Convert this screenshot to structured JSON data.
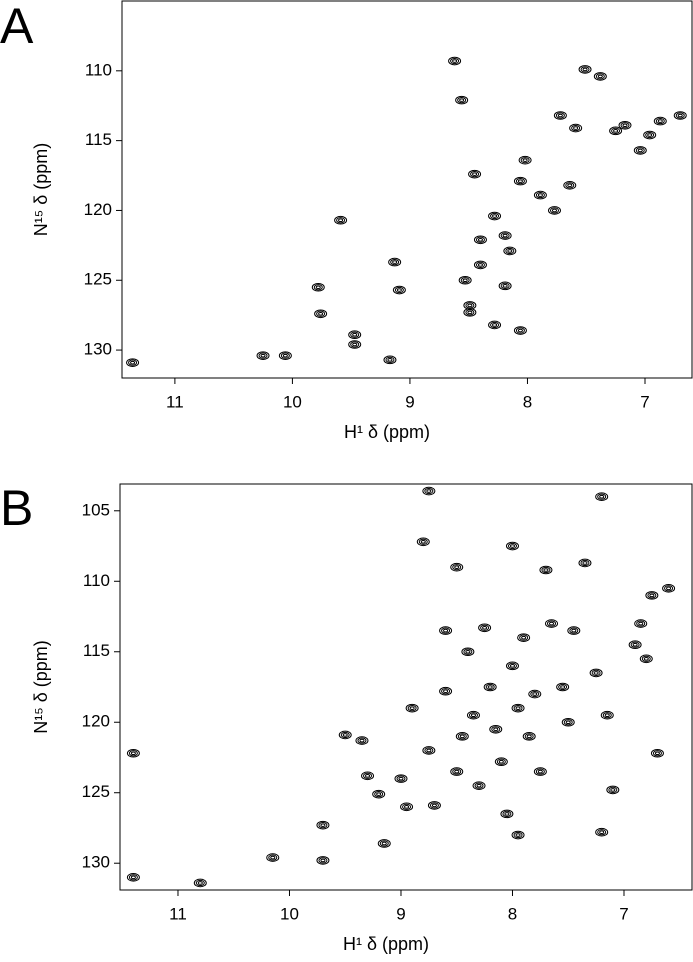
{
  "chart_data": [
    {
      "type": "contour",
      "panel_label": "A",
      "x_label": "H¹  δ (ppm)",
      "y_label": "N¹⁵  δ (ppm)",
      "xlim": [
        11.45,
        6.6
      ],
      "ylim": [
        105,
        132
      ],
      "xticks": [
        11,
        10,
        9,
        8,
        7
      ],
      "yticks": [
        110,
        115,
        120,
        125,
        130
      ],
      "color": "#000000",
      "x": [
        11.36,
        10.25,
        10.06,
        9.59,
        9.13,
        9.09,
        9.17,
        8.62,
        8.56,
        8.45,
        8.4,
        8.53,
        8.49,
        8.49,
        8.4,
        8.28,
        8.19,
        8.15,
        8.06,
        8.02,
        7.89,
        7.77,
        7.64,
        7.72,
        7.59,
        7.51,
        7.38,
        7.25,
        7.17,
        7.04,
        6.96,
        6.87,
        6.7,
        9.47,
        9.47,
        9.78,
        9.76,
        8.19,
        8.06,
        8.28
      ],
      "y": [
        130.9,
        130.4,
        130.4,
        120.7,
        123.7,
        125.7,
        130.7,
        109.3,
        112.1,
        117.4,
        122.1,
        125.0,
        126.8,
        127.3,
        123.9,
        120.4,
        121.8,
        122.9,
        117.9,
        116.4,
        118.9,
        120.0,
        118.2,
        113.2,
        114.1,
        109.9,
        110.4,
        114.3,
        113.9,
        115.7,
        114.6,
        113.6,
        113.2,
        128.9,
        129.6,
        125.5,
        127.4,
        125.4,
        128.6,
        128.2
      ]
    },
    {
      "type": "contour",
      "panel_label": "B",
      "x_label": "H¹  δ (ppm)",
      "y_label": "N¹⁵  δ (ppm)",
      "xlim": [
        11.52,
        6.39
      ],
      "ylim": [
        103.1,
        131.9
      ],
      "xticks": [
        11,
        10,
        9,
        8,
        7
      ],
      "yticks": [
        105,
        110,
        115,
        120,
        125,
        130
      ],
      "color": "#000000",
      "x": [
        11.4,
        11.4,
        10.8,
        10.15,
        9.7,
        9.7,
        9.5,
        9.35,
        9.3,
        9.2,
        9.15,
        9.0,
        8.95,
        8.9,
        8.75,
        8.8,
        8.75,
        8.7,
        8.6,
        8.6,
        8.5,
        8.5,
        8.45,
        8.4,
        8.35,
        8.3,
        8.25,
        8.2,
        8.15,
        8.1,
        8.05,
        8.0,
        8.0,
        7.95,
        7.95,
        7.9,
        7.85,
        7.8,
        7.75,
        7.7,
        7.65,
        7.55,
        7.5,
        7.45,
        7.35,
        7.2,
        7.25,
        7.15,
        7.1,
        7.2,
        6.9,
        6.85,
        6.8,
        6.7,
        6.75,
        6.6
      ],
      "y": [
        122.2,
        131.0,
        131.4,
        129.6,
        127.3,
        129.8,
        120.9,
        121.3,
        123.8,
        125.1,
        128.6,
        124.0,
        126.0,
        119.0,
        103.6,
        107.2,
        122.0,
        125.9,
        113.5,
        117.8,
        109.0,
        123.5,
        121.0,
        115.0,
        119.5,
        124.5,
        113.3,
        117.5,
        120.5,
        122.8,
        126.5,
        107.5,
        116.0,
        119.0,
        128.0,
        114.0,
        121.0,
        118.0,
        123.5,
        109.2,
        113.0,
        117.5,
        120.0,
        113.5,
        108.7,
        104.0,
        116.5,
        119.5,
        124.8,
        127.8,
        114.5,
        113.0,
        115.5,
        122.2,
        111.0,
        110.5
      ]
    }
  ]
}
